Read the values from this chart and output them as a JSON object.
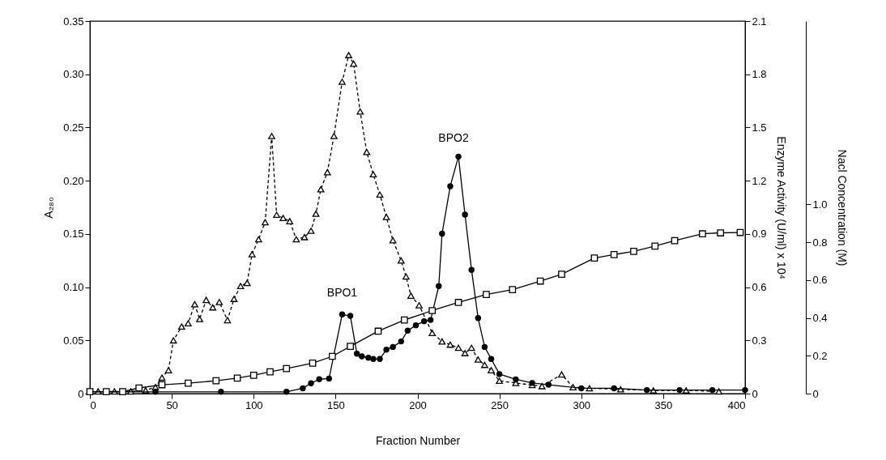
{
  "chart_data": {
    "type": "line",
    "xlabel": "Fraction Number",
    "ylabel": "A₂₈₀",
    "y2label": "Enzyme Activity (U/ml) x 10⁴",
    "y3label": "Nacl Concentration (M)",
    "xlim": [
      0,
      400
    ],
    "xticks": [
      0,
      50,
      100,
      150,
      200,
      250,
      300,
      350,
      400
    ],
    "ylim": [
      0,
      0.35
    ],
    "yticks": [
      0,
      0.05,
      {
        "value": 0.1,
        "label": "0.10"
      },
      0.15,
      {
        "value": 0.2,
        "label": "0.20"
      },
      0.25,
      {
        "value": 0.3,
        "label": "0.30"
      },
      0.35
    ],
    "y2lim": [
      0,
      2.1
    ],
    "y2ticks": [
      0,
      0.3,
      0.6,
      0.9,
      1.2,
      1.5,
      1.8,
      2.1
    ],
    "y3lim": [
      0,
      1.97
    ],
    "y3ticks": [
      0,
      0.2,
      0.4,
      0.6,
      0.8,
      {
        "value": 1,
        "label": "1.0"
      }
    ],
    "grid": false,
    "series": [
      {
        "color": "#000000",
        "axis": "y",
        "marker": "triangle",
        "line_style": "dashed",
        "x": [
          5,
          15,
          25,
          34,
          40,
          44,
          48,
          51,
          56,
          60,
          64,
          67,
          71,
          75,
          79,
          84,
          88,
          92,
          96,
          99,
          103,
          107,
          111,
          114,
          118,
          122,
          126,
          131,
          135,
          138,
          141,
          145,
          149,
          154,
          158,
          161,
          165,
          169,
          173,
          177,
          181,
          185,
          190,
          193,
          196,
          201,
          209,
          215,
          220,
          225,
          229,
          233,
          237,
          241,
          245,
          250,
          260,
          270,
          276,
          288,
          295,
          305,
          324,
          344,
          364,
          384
        ],
        "values": [
          0.002,
          0.002,
          0.002,
          0.003,
          0.006,
          0.015,
          0.022,
          0.05,
          0.063,
          0.066,
          0.084,
          0.07,
          0.088,
          0.081,
          0.086,
          0.069,
          0.089,
          0.101,
          0.104,
          0.131,
          0.145,
          0.161,
          0.242,
          0.168,
          0.165,
          0.162,
          0.145,
          0.147,
          0.153,
          0.169,
          0.192,
          0.208,
          0.242,
          0.293,
          0.318,
          0.31,
          0.265,
          0.227,
          0.206,
          0.187,
          0.166,
          0.144,
          0.125,
          0.11,
          0.092,
          0.083,
          0.057,
          0.049,
          0.046,
          0.043,
          0.038,
          0.043,
          0.032,
          0.027,
          0.022,
          0.012,
          0.01,
          0.008,
          0.007,
          0.018,
          0.006,
          0.005,
          0.004,
          0.003,
          0.003,
          0.002
        ]
      },
      {
        "color": "#000000",
        "axis": "y2",
        "marker": "circle",
        "line_style": "solid",
        "x": [
          0,
          40,
          80,
          120,
          130,
          135,
          140,
          146,
          154,
          159,
          163,
          166,
          170,
          173,
          177,
          181,
          185,
          190,
          194,
          199,
          204,
          208,
          213,
          215,
          220,
          225,
          229,
          233,
          237,
          241,
          245,
          250,
          260,
          270,
          280,
          300,
          320,
          340,
          360,
          380,
          400
        ],
        "values": [
          0.01,
          0.01,
          0.01,
          0.01,
          0.03,
          0.058,
          0.081,
          0.085,
          0.446,
          0.438,
          0.225,
          0.21,
          0.202,
          0.195,
          0.195,
          0.248,
          0.263,
          0.294,
          0.355,
          0.385,
          0.408,
          0.415,
          0.606,
          0.902,
          1.169,
          1.336,
          1.009,
          0.697,
          0.426,
          0.263,
          0.195,
          0.11,
          0.08,
          0.06,
          0.05,
          0.03,
          0.03,
          0.02,
          0.02,
          0.02,
          0.02
        ]
      },
      {
        "color": "#000000",
        "axis": "y3",
        "marker": "square",
        "line_style": "solid",
        "x": [
          0,
          10,
          20,
          30,
          44,
          60,
          77,
          90,
          100,
          110,
          120,
          136,
          148,
          159,
          176,
          192,
          209,
          225,
          242,
          258,
          275,
          288,
          308,
          320,
          332,
          345,
          357,
          374,
          385,
          397
        ],
        "values": [
          0.01,
          0.01,
          0.01,
          0.03,
          0.047,
          0.055,
          0.068,
          0.082,
          0.097,
          0.115,
          0.132,
          0.161,
          0.197,
          0.25,
          0.33,
          0.389,
          0.439,
          0.482,
          0.524,
          0.55,
          0.595,
          0.631,
          0.717,
          0.735,
          0.752,
          0.78,
          0.809,
          0.845,
          0.85,
          0.852
        ]
      }
    ],
    "annotations": [
      "BPO1",
      "BPO2"
    ]
  }
}
